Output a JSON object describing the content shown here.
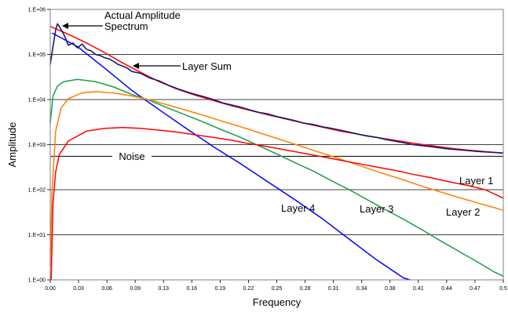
{
  "chart_data": {
    "type": "line",
    "xlabel": "Frequency",
    "ylabel": "Amplitude",
    "xlim": [
      0,
      0.5
    ],
    "ylim": [
      1,
      1000000
    ],
    "yscale": "log",
    "grid": "horizontal",
    "x_ticks": [
      "0.00",
      "0.03",
      "0.06",
      "0.09",
      "0.13",
      "0.16",
      "0.19",
      "0.22",
      "0.25",
      "0.28",
      "0.31",
      "0.34",
      "0.38",
      "0.41",
      "0.44",
      "0.47",
      "0.5"
    ],
    "y_ticks": [
      {
        "label": "1.E+00",
        "value": 1
      },
      {
        "label": "1.E+01",
        "value": 10
      },
      {
        "label": "1.E+02",
        "value": 100
      },
      {
        "label": "1.E+03",
        "value": 1000
      },
      {
        "label": "1.E+04",
        "value": 10000
      },
      {
        "label": "1.E+05",
        "value": 100000
      },
      {
        "label": "1.E+06",
        "value": 1000000
      }
    ],
    "noise": {
      "label": "Noise",
      "value": 550,
      "color": "#000000"
    },
    "series": [
      {
        "name": "Actual Amplitude Spectrum",
        "color": "#1a1a6e",
        "points": [
          [
            0.0,
            60000
          ],
          [
            0.003,
            150000
          ],
          [
            0.006,
            350000
          ],
          [
            0.008,
            480000
          ],
          [
            0.01,
            420000
          ],
          [
            0.013,
            330000
          ],
          [
            0.016,
            250000
          ],
          [
            0.02,
            160000
          ],
          [
            0.025,
            180000
          ],
          [
            0.03,
            140000
          ],
          [
            0.035,
            170000
          ],
          [
            0.04,
            130000
          ],
          [
            0.045,
            120000
          ],
          [
            0.05,
            100000
          ],
          [
            0.055,
            95000
          ],
          [
            0.06,
            85000
          ],
          [
            0.065,
            80000
          ],
          [
            0.07,
            70000
          ],
          [
            0.075,
            60000
          ],
          [
            0.08,
            55000
          ],
          [
            0.085,
            50000
          ],
          [
            0.09,
            42000
          ],
          [
            0.095,
            40000
          ],
          [
            0.1,
            38000
          ],
          [
            0.11,
            30000
          ],
          [
            0.12,
            26000
          ],
          [
            0.13,
            21000
          ],
          [
            0.14,
            17500
          ],
          [
            0.15,
            15000
          ],
          [
            0.16,
            13000
          ],
          [
            0.17,
            11500
          ],
          [
            0.18,
            10000
          ],
          [
            0.19,
            8500
          ],
          [
            0.2,
            7600
          ],
          [
            0.21,
            6800
          ],
          [
            0.22,
            5900
          ],
          [
            0.23,
            5200
          ],
          [
            0.24,
            4800
          ],
          [
            0.25,
            4200
          ],
          [
            0.26,
            3800
          ],
          [
            0.27,
            3400
          ],
          [
            0.28,
            3000
          ],
          [
            0.29,
            2800
          ],
          [
            0.3,
            2500
          ],
          [
            0.31,
            2300
          ],
          [
            0.32,
            2100
          ],
          [
            0.33,
            1900
          ],
          [
            0.34,
            1700
          ],
          [
            0.35,
            1550
          ],
          [
            0.36,
            1450
          ],
          [
            0.37,
            1300
          ],
          [
            0.38,
            1200
          ],
          [
            0.39,
            1100
          ],
          [
            0.4,
            1000
          ],
          [
            0.41,
            950
          ],
          [
            0.42,
            900
          ],
          [
            0.43,
            850
          ],
          [
            0.44,
            800
          ],
          [
            0.45,
            770
          ],
          [
            0.46,
            740
          ],
          [
            0.47,
            710
          ],
          [
            0.48,
            690
          ],
          [
            0.49,
            670
          ],
          [
            0.5,
            650
          ]
        ]
      },
      {
        "name": "Layer Sum",
        "color": "#ff0000",
        "points": [
          [
            0.0,
            420000
          ],
          [
            0.02,
            280000
          ],
          [
            0.04,
            180000
          ],
          [
            0.06,
            110000
          ],
          [
            0.08,
            65000
          ],
          [
            0.1,
            40000
          ],
          [
            0.12,
            25000
          ],
          [
            0.14,
            17000
          ],
          [
            0.16,
            12500
          ],
          [
            0.18,
            9500
          ],
          [
            0.2,
            7300
          ],
          [
            0.22,
            5800
          ],
          [
            0.24,
            4600
          ],
          [
            0.26,
            3700
          ],
          [
            0.28,
            3000
          ],
          [
            0.3,
            2450
          ],
          [
            0.32,
            2000
          ],
          [
            0.34,
            1700
          ],
          [
            0.36,
            1450
          ],
          [
            0.38,
            1250
          ],
          [
            0.4,
            1080
          ],
          [
            0.42,
            950
          ],
          [
            0.44,
            840
          ],
          [
            0.46,
            760
          ],
          [
            0.48,
            700
          ],
          [
            0.5,
            650
          ]
        ]
      },
      {
        "name": "Layer 4",
        "color": "#0000ff",
        "points": [
          [
            0.002,
            300000
          ],
          [
            0.03,
            150000
          ],
          [
            0.06,
            50000
          ],
          [
            0.09,
            16000
          ],
          [
            0.12,
            6000
          ],
          [
            0.15,
            2300
          ],
          [
            0.18,
            900
          ],
          [
            0.21,
            380
          ],
          [
            0.24,
            150
          ],
          [
            0.27,
            60
          ],
          [
            0.3,
            23
          ],
          [
            0.33,
            8
          ],
          [
            0.36,
            2.8
          ],
          [
            0.39,
            1.1
          ],
          [
            0.397,
            1
          ]
        ]
      },
      {
        "name": "Layer 3",
        "color": "#1a9e4a",
        "points": [
          [
            0.0,
            3000
          ],
          [
            0.003,
            12000
          ],
          [
            0.008,
            20000
          ],
          [
            0.015,
            25000
          ],
          [
            0.03,
            28000
          ],
          [
            0.05,
            25000
          ],
          [
            0.07,
            19000
          ],
          [
            0.09,
            13000
          ],
          [
            0.11,
            9500
          ],
          [
            0.13,
            6500
          ],
          [
            0.15,
            4500
          ],
          [
            0.17,
            3100
          ],
          [
            0.19,
            2100
          ],
          [
            0.21,
            1450
          ],
          [
            0.23,
            950
          ],
          [
            0.25,
            620
          ],
          [
            0.27,
            400
          ],
          [
            0.29,
            260
          ],
          [
            0.31,
            160
          ],
          [
            0.33,
            100
          ],
          [
            0.35,
            60
          ],
          [
            0.37,
            36
          ],
          [
            0.39,
            22
          ],
          [
            0.41,
            13
          ],
          [
            0.43,
            7.5
          ],
          [
            0.45,
            4.4
          ],
          [
            0.47,
            2.6
          ],
          [
            0.49,
            1.5
          ],
          [
            0.5,
            1.2
          ]
        ]
      },
      {
        "name": "Layer 2",
        "color": "#ff8000",
        "points": [
          [
            0.0,
            2
          ],
          [
            0.002,
            100
          ],
          [
            0.006,
            2000
          ],
          [
            0.012,
            6500
          ],
          [
            0.02,
            10500
          ],
          [
            0.035,
            14000
          ],
          [
            0.05,
            15000
          ],
          [
            0.07,
            14000
          ],
          [
            0.09,
            12000
          ],
          [
            0.11,
            9800
          ],
          [
            0.13,
            7600
          ],
          [
            0.15,
            5800
          ],
          [
            0.17,
            4400
          ],
          [
            0.19,
            3300
          ],
          [
            0.21,
            2500
          ],
          [
            0.23,
            1850
          ],
          [
            0.25,
            1380
          ],
          [
            0.27,
            1020
          ],
          [
            0.29,
            750
          ],
          [
            0.31,
            560
          ],
          [
            0.33,
            410
          ],
          [
            0.35,
            300
          ],
          [
            0.37,
            220
          ],
          [
            0.39,
            165
          ],
          [
            0.41,
            120
          ],
          [
            0.43,
            90
          ],
          [
            0.45,
            68
          ],
          [
            0.47,
            52
          ],
          [
            0.49,
            40
          ],
          [
            0.5,
            35
          ]
        ]
      },
      {
        "name": "Layer 1",
        "color": "#ff0000",
        "points": [
          [
            0.001,
            1
          ],
          [
            0.003,
            50
          ],
          [
            0.006,
            250
          ],
          [
            0.01,
            600
          ],
          [
            0.02,
            1200
          ],
          [
            0.04,
            2000
          ],
          [
            0.06,
            2300
          ],
          [
            0.08,
            2400
          ],
          [
            0.1,
            2300
          ],
          [
            0.12,
            2100
          ],
          [
            0.14,
            1900
          ],
          [
            0.16,
            1650
          ],
          [
            0.18,
            1450
          ],
          [
            0.2,
            1250
          ],
          [
            0.22,
            1050
          ],
          [
            0.24,
            900
          ],
          [
            0.26,
            760
          ],
          [
            0.28,
            640
          ],
          [
            0.3,
            540
          ],
          [
            0.32,
            450
          ],
          [
            0.34,
            380
          ],
          [
            0.36,
            320
          ],
          [
            0.38,
            270
          ],
          [
            0.4,
            220
          ],
          [
            0.42,
            185
          ],
          [
            0.44,
            150
          ],
          [
            0.46,
            125
          ],
          [
            0.48,
            100
          ],
          [
            0.5,
            65
          ]
        ]
      }
    ],
    "annotations": [
      {
        "name": "annotation-actual-amplitude",
        "lines": [
          "Actual Amplitude",
          "Spectrum"
        ],
        "arrow": true
      },
      {
        "name": "annotation-layer-sum",
        "lines": [
          "Layer Sum"
        ],
        "arrow": true
      },
      {
        "name": "annotation-layer-1",
        "lines": [
          "Layer 1"
        ],
        "arrow": false
      },
      {
        "name": "annotation-layer-2",
        "lines": [
          "Layer 2"
        ],
        "arrow": false
      },
      {
        "name": "annotation-layer-3",
        "lines": [
          "Layer 3"
        ],
        "arrow": false
      },
      {
        "name": "annotation-layer-4",
        "lines": [
          "Layer 4"
        ],
        "arrow": false
      }
    ]
  }
}
